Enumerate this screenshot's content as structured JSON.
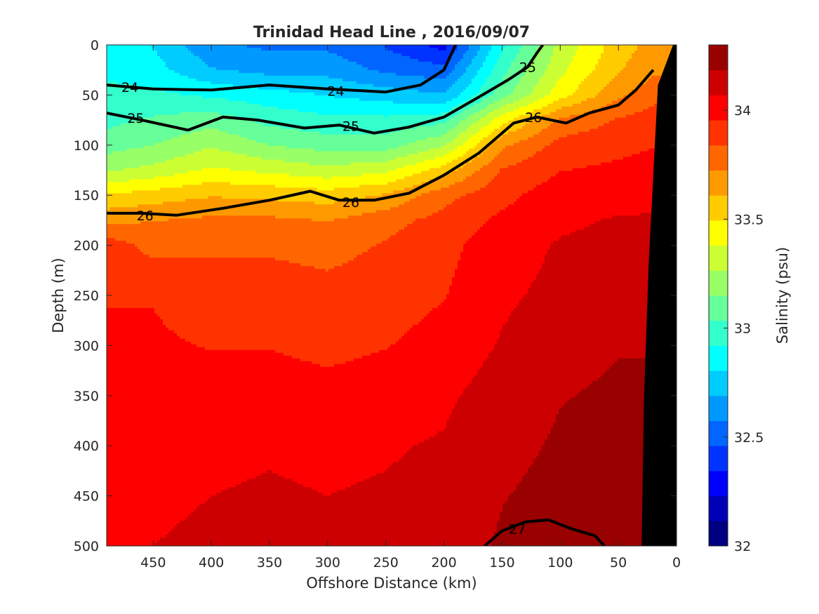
{
  "chart_data": {
    "type": "heatmap",
    "title": "Trinidad Head Line , 2016/09/07",
    "xlabel": "Offshore Distance (km)",
    "ylabel": "Depth (m)",
    "colorbar_label": "Salinity (psu)",
    "xlim": [
      490,
      0
    ],
    "ylim": [
      0,
      500
    ],
    "clim": [
      32,
      34.3
    ],
    "x_ticks": [
      450,
      400,
      350,
      300,
      250,
      200,
      150,
      100,
      50,
      0
    ],
    "x_tick_labels": [
      "450",
      "400",
      "350",
      "300",
      "250",
      "200",
      "150",
      "100",
      "50",
      "0"
    ],
    "y_ticks": [
      0,
      50,
      100,
      150,
      200,
      250,
      300,
      350,
      400,
      450,
      500
    ],
    "y_tick_labels": [
      "0",
      "50",
      "100",
      "150",
      "200",
      "250",
      "300",
      "350",
      "400",
      "450",
      "500"
    ],
    "colorbar_ticks": [
      32,
      32.5,
      33,
      33.5,
      34
    ],
    "colorbar_tick_labels": [
      "32",
      "32.5",
      "33",
      "33.5",
      "34"
    ],
    "colorbar_colors": [
      "#000080",
      "#0000b5",
      "#0000ff",
      "#0033ff",
      "#0066ff",
      "#0099ff",
      "#00ccff",
      "#00ffff",
      "#33ffcc",
      "#66ff99",
      "#99ff66",
      "#ccff33",
      "#ffff00",
      "#ffcc00",
      "#ff9900",
      "#ff6600",
      "#ff3300",
      "#ff0000",
      "#cc0000",
      "#990000"
    ],
    "salinity_field": {
      "x": [
        490,
        450,
        400,
        350,
        300,
        250,
        200,
        150,
        100,
        50,
        20
      ],
      "depth": [
        0,
        25,
        50,
        75,
        100,
        125,
        150,
        175,
        200,
        250,
        300,
        350,
        400,
        450,
        500
      ],
      "values": [
        [
          32.85,
          32.8,
          32.6,
          32.55,
          32.55,
          32.45,
          32.3,
          32.9,
          33.3,
          33.55,
          33.65
        ],
        [
          32.9,
          32.85,
          32.7,
          32.65,
          32.65,
          32.55,
          32.5,
          33.0,
          33.35,
          33.6,
          33.7
        ],
        [
          32.95,
          32.95,
          32.9,
          32.85,
          32.8,
          32.75,
          32.7,
          33.1,
          33.45,
          33.7,
          33.8
        ],
        [
          33.0,
          33.05,
          33.1,
          33.0,
          32.95,
          32.95,
          33.0,
          33.45,
          33.75,
          33.85,
          33.9
        ],
        [
          33.1,
          33.15,
          33.25,
          33.15,
          33.1,
          33.1,
          33.25,
          33.7,
          33.88,
          33.92,
          33.95
        ],
        [
          33.25,
          33.3,
          33.4,
          33.35,
          33.3,
          33.35,
          33.55,
          33.85,
          33.95,
          33.98,
          34.0
        ],
        [
          33.5,
          33.55,
          33.6,
          33.58,
          33.55,
          33.62,
          33.8,
          33.92,
          34.02,
          34.02,
          34.05
        ],
        [
          33.7,
          33.72,
          33.75,
          33.75,
          33.72,
          33.8,
          33.88,
          33.98,
          34.05,
          34.08,
          34.08
        ],
        [
          33.9,
          33.8,
          33.82,
          33.82,
          33.8,
          33.85,
          33.92,
          34.02,
          34.08,
          34.1,
          34.12
        ],
        [
          33.95,
          33.95,
          33.9,
          33.9,
          33.88,
          33.9,
          33.95,
          34.05,
          34.1,
          34.15,
          34.15
        ],
        [
          33.97,
          33.97,
          33.95,
          33.95,
          33.92,
          33.95,
          34.0,
          34.08,
          34.15,
          34.18,
          34.18
        ],
        [
          33.99,
          34.0,
          34.0,
          34.02,
          34.0,
          34.02,
          34.05,
          34.12,
          34.18,
          34.2,
          34.2
        ],
        [
          34.02,
          34.03,
          34.05,
          34.06,
          34.05,
          34.06,
          34.08,
          34.15,
          34.2,
          34.22,
          34.22
        ],
        [
          34.04,
          34.05,
          34.07,
          34.08,
          34.07,
          34.08,
          34.1,
          34.18,
          34.22,
          34.24,
          34.24
        ],
        [
          34.05,
          34.07,
          34.09,
          34.1,
          34.09,
          34.1,
          34.12,
          34.2,
          34.26,
          34.26,
          34.26
        ]
      ]
    },
    "density_contours": [
      {
        "label": "24",
        "label_points": [
          {
            "x": 470,
            "depth": 42
          },
          {
            "x": 293,
            "depth": 46
          }
        ],
        "line": [
          [
            490,
            40
          ],
          [
            450,
            44
          ],
          [
            400,
            45
          ],
          [
            350,
            40
          ],
          [
            300,
            44
          ],
          [
            250,
            47
          ],
          [
            220,
            40
          ],
          [
            200,
            25
          ],
          [
            190,
            0
          ]
        ]
      },
      {
        "label": "25",
        "label_points": [
          {
            "x": 465,
            "depth": 73
          },
          {
            "x": 280,
            "depth": 81
          },
          {
            "x": 128,
            "depth": 22
          }
        ],
        "line": [
          [
            490,
            68
          ],
          [
            460,
            75
          ],
          [
            420,
            85
          ],
          [
            390,
            72
          ],
          [
            360,
            75
          ],
          [
            320,
            83
          ],
          [
            290,
            80
          ],
          [
            260,
            88
          ],
          [
            230,
            82
          ],
          [
            200,
            72
          ],
          [
            170,
            52
          ],
          [
            145,
            35
          ],
          [
            128,
            22
          ],
          [
            120,
            8
          ],
          [
            115,
            0
          ]
        ]
      },
      {
        "label": "26",
        "label_points": [
          {
            "x": 457,
            "depth": 170
          },
          {
            "x": 280,
            "depth": 157
          },
          {
            "x": 123,
            "depth": 72
          }
        ],
        "line": [
          [
            490,
            168
          ],
          [
            460,
            168
          ],
          [
            430,
            170
          ],
          [
            390,
            163
          ],
          [
            350,
            155
          ],
          [
            315,
            146
          ],
          [
            290,
            155
          ],
          [
            260,
            155
          ],
          [
            230,
            148
          ],
          [
            200,
            130
          ],
          [
            170,
            108
          ],
          [
            140,
            78
          ],
          [
            120,
            72
          ],
          [
            95,
            78
          ],
          [
            75,
            68
          ],
          [
            50,
            60
          ],
          [
            35,
            45
          ],
          [
            20,
            25
          ]
        ]
      },
      {
        "label": "27",
        "label_points": [
          {
            "x": 137,
            "depth": 483
          }
        ],
        "line": [
          [
            165,
            500
          ],
          [
            150,
            485
          ],
          [
            130,
            476
          ],
          [
            110,
            474
          ],
          [
            90,
            483
          ],
          [
            70,
            490
          ],
          [
            62,
            500
          ]
        ]
      }
    ],
    "masked_regions": [
      {
        "fill": "#000000",
        "polygon": [
          [
            30,
            500
          ],
          [
            28,
            355
          ],
          [
            24,
            220
          ],
          [
            16,
            40
          ],
          [
            3,
            0
          ],
          [
            0,
            0
          ],
          [
            0,
            500
          ]
        ]
      }
    ]
  }
}
